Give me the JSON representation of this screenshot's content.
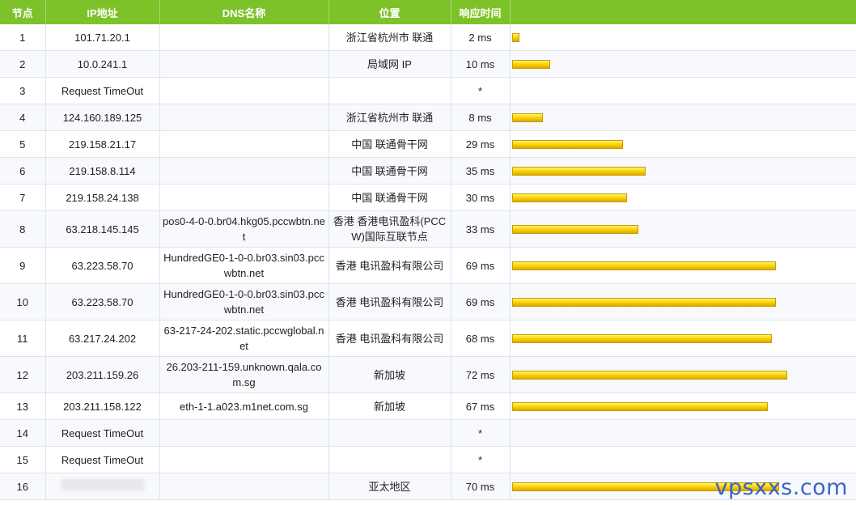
{
  "headers": [
    "节点",
    "IP地址",
    "DNS名称",
    "位置",
    "响应时间",
    ""
  ],
  "rows": [
    {
      "hop": "1",
      "ip": "101.71.20.1",
      "dns": "",
      "loc": "浙江省杭州市 联通",
      "time": "2 ms",
      "ms": 2
    },
    {
      "hop": "2",
      "ip": "10.0.241.1",
      "dns": "",
      "loc": "局域网 IP",
      "time": "10 ms",
      "ms": 10
    },
    {
      "hop": "3",
      "ip": "Request TimeOut",
      "dns": "",
      "loc": "",
      "time": "*",
      "ms": 0
    },
    {
      "hop": "4",
      "ip": "124.160.189.125",
      "dns": "",
      "loc": "浙江省杭州市 联通",
      "time": "8 ms",
      "ms": 8
    },
    {
      "hop": "5",
      "ip": "219.158.21.17",
      "dns": "",
      "loc": "中国 联通骨干网",
      "time": "29 ms",
      "ms": 29
    },
    {
      "hop": "6",
      "ip": "219.158.8.114",
      "dns": "",
      "loc": "中国 联通骨干网",
      "time": "35 ms",
      "ms": 35
    },
    {
      "hop": "7",
      "ip": "219.158.24.138",
      "dns": "",
      "loc": "中国 联通骨干网",
      "time": "30 ms",
      "ms": 30
    },
    {
      "hop": "8",
      "ip": "63.218.145.145",
      "dns": "pos0-4-0-0.br04.hkg05.pccwbtn.net",
      "loc": "香港 香港电讯盈科(PCCW)国际互联节点",
      "time": "33 ms",
      "ms": 33
    },
    {
      "hop": "9",
      "ip": "63.223.58.70",
      "dns": "HundredGE0-1-0-0.br03.sin03.pccwbtn.net",
      "loc": "香港 电讯盈科有限公司",
      "time": "69 ms",
      "ms": 69
    },
    {
      "hop": "10",
      "ip": "63.223.58.70",
      "dns": "HundredGE0-1-0-0.br03.sin03.pccwbtn.net",
      "loc": "香港 电讯盈科有限公司",
      "time": "69 ms",
      "ms": 69
    },
    {
      "hop": "11",
      "ip": "63.217.24.202",
      "dns": "63-217-24-202.static.pccwglobal.net",
      "loc": "香港 电讯盈科有限公司",
      "time": "68 ms",
      "ms": 68
    },
    {
      "hop": "12",
      "ip": "203.211.159.26",
      "dns": "26.203-211-159.unknown.qala.com.sg",
      "loc": "新加坡",
      "time": "72 ms",
      "ms": 72
    },
    {
      "hop": "13",
      "ip": "203.211.158.122",
      "dns": "eth-1-1.a023.m1net.com.sg",
      "loc": "新加坡",
      "time": "67 ms",
      "ms": 67
    },
    {
      "hop": "14",
      "ip": "Request TimeOut",
      "dns": "",
      "loc": "",
      "time": "*",
      "ms": 0
    },
    {
      "hop": "15",
      "ip": "Request TimeOut",
      "dns": "",
      "loc": "",
      "time": "*",
      "ms": 0
    },
    {
      "hop": "16",
      "ip": "",
      "dns": "",
      "loc": "亚太地区",
      "time": "70 ms",
      "ms": 70,
      "ip_redacted": true
    }
  ],
  "bar_color": "#f5cf00",
  "header_color": "#7ec22a",
  "watermark": "vpsxxs.com"
}
